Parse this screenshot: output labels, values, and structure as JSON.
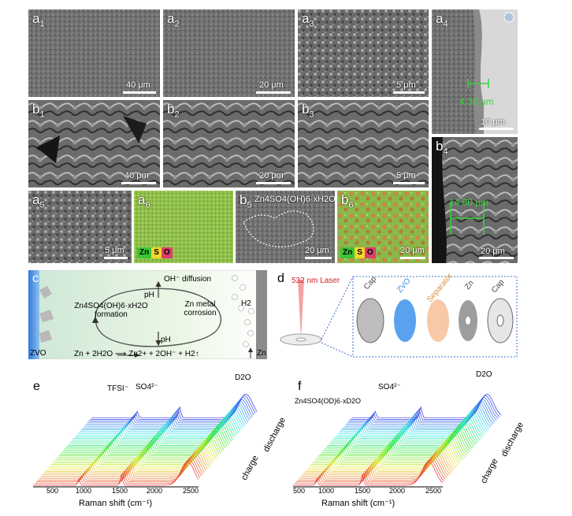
{
  "header_links": [],
  "panels": {
    "a1": {
      "label_main": "a",
      "label_sub": "1",
      "scale": "40 μm"
    },
    "a2": {
      "label_main": "a",
      "label_sub": "2",
      "scale": "20 μm"
    },
    "a3": {
      "label_main": "a",
      "label_sub": "3",
      "scale": "5 μm"
    },
    "a4": {
      "label_main": "a",
      "label_sub": "4",
      "scale": "10 μm",
      "thickness": "4.30 μm"
    },
    "b1": {
      "label_main": "b",
      "label_sub": "1",
      "scale": "40 μm"
    },
    "b2": {
      "label_main": "b",
      "label_sub": "2",
      "scale": "20 μm"
    },
    "b3": {
      "label_main": "b",
      "label_sub": "3",
      "scale": "5 μm"
    },
    "b4": {
      "label_main": "b",
      "label_sub": "4",
      "scale": "20 μm",
      "thickness": "14.80 μm"
    },
    "a5": {
      "label_main": "a",
      "label_sub": "5",
      "scale": "5 μm"
    },
    "a6": {
      "label_main": "a",
      "label_sub": "6",
      "legend": [
        "Zn",
        "S",
        "O"
      ]
    },
    "b5": {
      "label_main": "b",
      "label_sub": "5",
      "scale": "20 μm",
      "annotation": "Zn4SO4(OH)6·xH2O"
    },
    "b6": {
      "label_main": "b",
      "label_sub": "6",
      "scale": "20 μm",
      "legend": [
        "Zn",
        "S",
        "O"
      ]
    }
  },
  "panel_c": {
    "letter": "c",
    "left_label": "ZVO",
    "right_label": "Zn",
    "oh_diffusion": "OH⁻ diffusion",
    "ph_up": "pH",
    "ph_down": "pH",
    "formation_line1": "Zn4SO4(OH)6·xH2O",
    "formation_line2": "formation",
    "corrosion_line1": "Zn metal",
    "corrosion_line2": "corrosion",
    "h2": "H2",
    "reaction": "Zn + 2H2O ⟶ Zn2+ + 2OH⁻ + H2↑"
  },
  "panel_d": {
    "letter": "d",
    "laser": "532 nm Laser",
    "parts": [
      "Cap",
      "ZVO",
      "Separator",
      "Zn",
      "Cap"
    ],
    "part_colors": [
      "#444444",
      "#3b8ee8",
      "#e08a3c",
      "#444444",
      "#444444"
    ]
  },
  "panel_e": {
    "letter": "e",
    "peak_labels": [
      "TFSI⁻",
      "SO4²⁻",
      "D2O"
    ],
    "charge": "charge",
    "discharge": "discharge",
    "xlabel": "Raman shift (cm⁻¹)",
    "ticks": [
      "500",
      "1000",
      "1500",
      "2000",
      "2500"
    ]
  },
  "panel_f": {
    "letter": "f",
    "peak_labels": [
      "Zn4SO4(OD)6·xD2O",
      "SO4²⁻",
      "D2O"
    ],
    "charge": "charge",
    "discharge": "discharge",
    "xlabel": "Raman shift (cm⁻¹)",
    "ticks": [
      "500",
      "1000",
      "1500",
      "2000",
      "2500"
    ]
  }
}
